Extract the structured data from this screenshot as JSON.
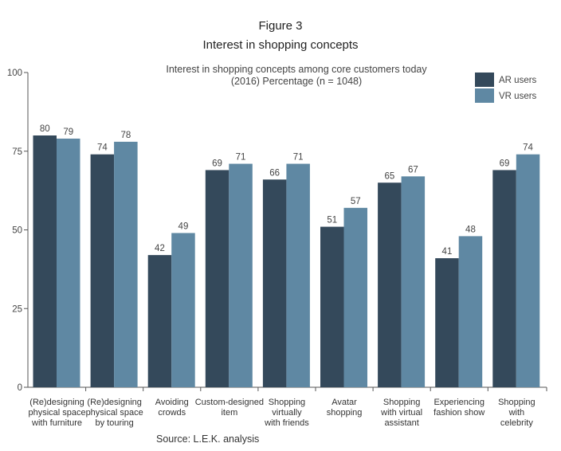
{
  "figure_label": "Figure 3",
  "figure_title": "Interest in shopping concepts",
  "source": "Source: L.E.K. analysis",
  "chart_data": {
    "type": "bar",
    "subtitle_lines": [
      "Interest in shopping concepts among core customers today",
      "(2016) Percentage (n = 1048)"
    ],
    "categories": [
      [
        "(Re)designing",
        "physical space",
        "with furniture"
      ],
      [
        "(Re)designing",
        "physical space",
        "by touring"
      ],
      [
        "Avoiding",
        "crowds"
      ],
      [
        "Custom-designed",
        "item"
      ],
      [
        "Shopping",
        "virtually",
        "with friends"
      ],
      [
        "Avatar",
        "shopping"
      ],
      [
        "Shopping",
        "with virtual",
        "assistant"
      ],
      [
        "Experiencing",
        "fashion show"
      ],
      [
        "Shopping",
        "with",
        "celebrity"
      ]
    ],
    "series": [
      {
        "name": "AR users",
        "color": "#34495b",
        "values": [
          80,
          74,
          42,
          69,
          66,
          51,
          65,
          41,
          69
        ]
      },
      {
        "name": "VR users",
        "color": "#5f88a3",
        "values": [
          79,
          78,
          49,
          71,
          71,
          57,
          67,
          48,
          74
        ]
      }
    ],
    "yticks": [
      0,
      25,
      50,
      75,
      100
    ],
    "ylim": [
      0,
      100
    ],
    "grid": false,
    "legend_position": "top-right"
  }
}
